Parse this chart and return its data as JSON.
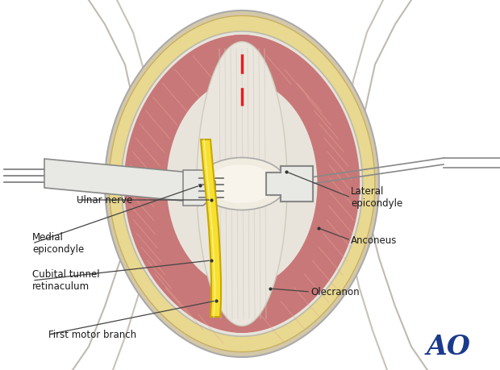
{
  "bg_color": "#ffffff",
  "ao_color": "#1a3a8c",
  "labels": {
    "ulnar_nerve": "Ulnar nerve",
    "medial_epicondyle": "Medial\nepicondyle",
    "cubital_tunnel": "Cubital tunnel\nretinaculum",
    "first_motor": "First motor branch",
    "lateral_epicondyle": "Lateral\nepicondyle",
    "anconeus": "Anconeus",
    "olecranon": "Olecranon"
  },
  "skin_color": "#d4c8a8",
  "muscle_color": "#c87878",
  "fat_color": "#e8d890",
  "tendon_color": "#eae6de",
  "tendon_inner": "#f0ece4",
  "bone_color": "#f0ece0",
  "nerve_color": "#f8e030",
  "nerve_edge": "#c8a800",
  "retractor_color": "#e8e8e4",
  "retractor_edge": "#888888",
  "line_color": "#555555",
  "body_outline": "#c8c0b0",
  "dashed_red": "#e02020",
  "wound_edge": "#aaaaaa",
  "fat_edge": "#c8b060",
  "muscle_shade": "#e8a898"
}
